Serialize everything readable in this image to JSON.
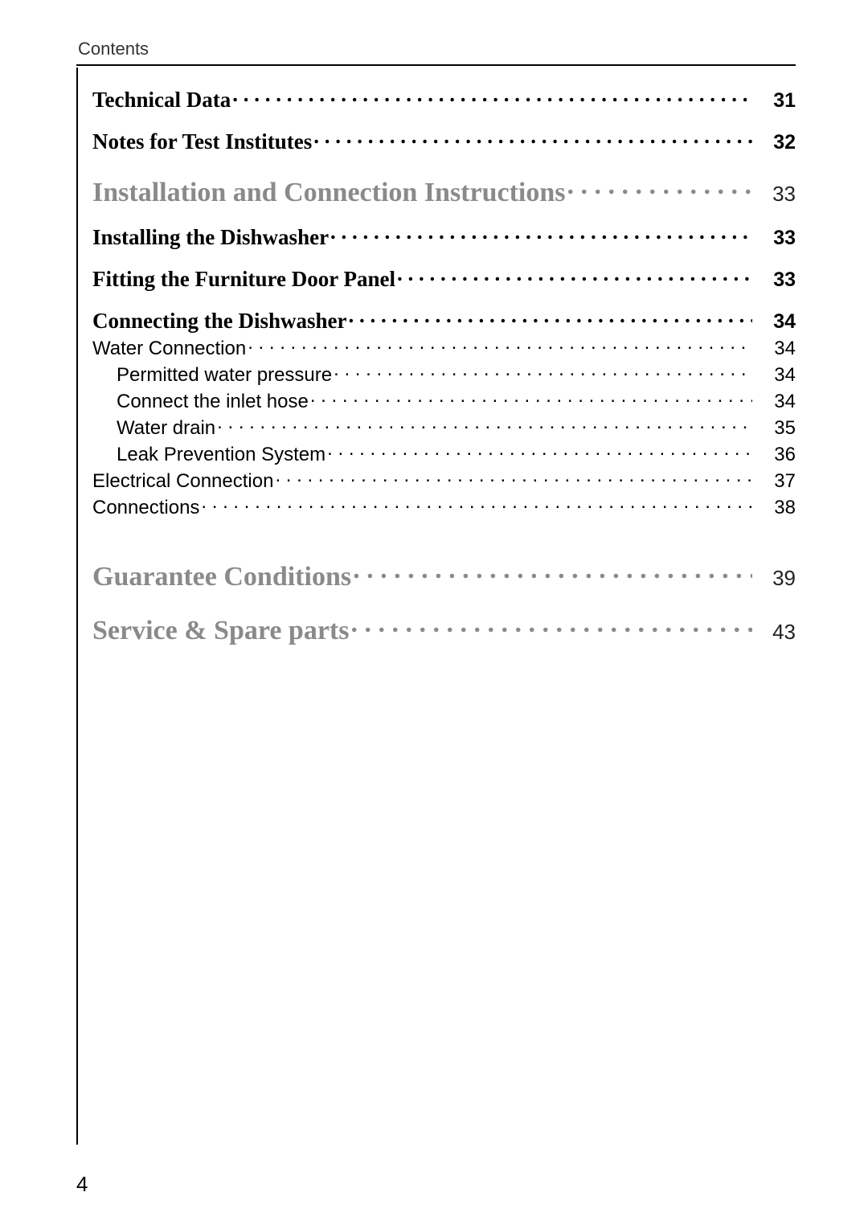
{
  "header": {
    "label": "Contents"
  },
  "page_number": "4",
  "colors": {
    "muted_heading": "#8a8a8a",
    "text": "#000000",
    "background": "#ffffff"
  },
  "fonts": {
    "serif": "Times New Roman",
    "sans": "Arial"
  },
  "entries": [
    {
      "label": "Technical Data",
      "page": "31",
      "level": "bold",
      "extra_class": "first-row"
    },
    {
      "label": "Notes for Test Institutes",
      "page": "32",
      "level": "bold"
    },
    {
      "label": "Installation and Connection Instructions",
      "page": "33",
      "level": "h1"
    },
    {
      "label": "Installing the Dishwasher",
      "page": "33",
      "level": "bold"
    },
    {
      "label": "Fitting the Furniture Door Panel",
      "page": "33",
      "level": "bold"
    },
    {
      "label": "Connecting the Dishwasher",
      "page": "34",
      "level": "bold"
    },
    {
      "label": "Water Connection",
      "page": "34",
      "level": "plain",
      "tight": true
    },
    {
      "label": "Permitted water pressure",
      "page": "34",
      "level": "sub",
      "tight": true
    },
    {
      "label": "Connect the inlet hose",
      "page": "34",
      "level": "sub",
      "tight": true
    },
    {
      "label": "Water drain",
      "page": "35",
      "level": "sub",
      "tight": true
    },
    {
      "label": "Leak Prevention System",
      "page": "36",
      "level": "sub",
      "tight": true
    },
    {
      "label": "Electrical Connection",
      "page": "37",
      "level": "plain",
      "tight": true
    },
    {
      "label": "Connections",
      "page": "38",
      "level": "plain",
      "tight": true
    },
    {
      "label": "Guarantee Conditions",
      "page": "39",
      "level": "h1",
      "extra_class": "extra-gap"
    },
    {
      "label": "Service & Spare parts",
      "page": "43",
      "level": "h1"
    }
  ]
}
